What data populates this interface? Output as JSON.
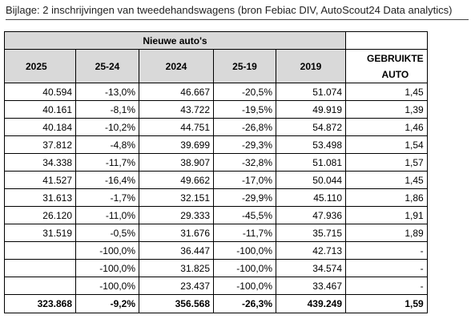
{
  "caption": "Bijlage: 2 inschrijvingen van tweedehandswagens (bron Febiac DIV, AutoScout24 Data analytics)",
  "table": {
    "super_header": "Nieuwe auto's",
    "columns": [
      "2025",
      "25-24",
      "2024",
      "25-19",
      "2019"
    ],
    "used_header_line1": "GEBRUIKTE",
    "used_header_line2": "AUTO",
    "rows": [
      [
        "40.594",
        "-13,0%",
        "46.667",
        "-20,5%",
        "51.074",
        "1,45"
      ],
      [
        "40.161",
        "-8,1%",
        "43.722",
        "-19,5%",
        "49.919",
        "1,39"
      ],
      [
        "40.184",
        "-10,2%",
        "44.751",
        "-26,8%",
        "54.872",
        "1,46"
      ],
      [
        "37.812",
        "-4,8%",
        "39.699",
        "-29,3%",
        "53.498",
        "1,54"
      ],
      [
        "34.338",
        "-11,7%",
        "38.907",
        "-32,8%",
        "51.081",
        "1,57"
      ],
      [
        "41.527",
        "-16,4%",
        "49.662",
        "-17,0%",
        "50.044",
        "1,45"
      ],
      [
        "31.613",
        "-1,7%",
        "32.151",
        "-29,9%",
        "45.110",
        "1,86"
      ],
      [
        "26.120",
        "-11,0%",
        "29.333",
        "-45,5%",
        "47.936",
        "1,91"
      ],
      [
        "31.519",
        "-0,5%",
        "31.676",
        "-11,7%",
        "35.715",
        "1,89"
      ],
      [
        "",
        "-100,0%",
        "36.447",
        "-100,0%",
        "42.713",
        "-"
      ],
      [
        "",
        "-100,0%",
        "31.825",
        "-100,0%",
        "34.574",
        "-"
      ],
      [
        "",
        "-100,0%",
        "23.437",
        "-100,0%",
        "33.467",
        "-"
      ]
    ],
    "total": [
      "323.868",
      "-9,2%",
      "356.568",
      "-26,3%",
      "439.249",
      "1,59"
    ]
  }
}
